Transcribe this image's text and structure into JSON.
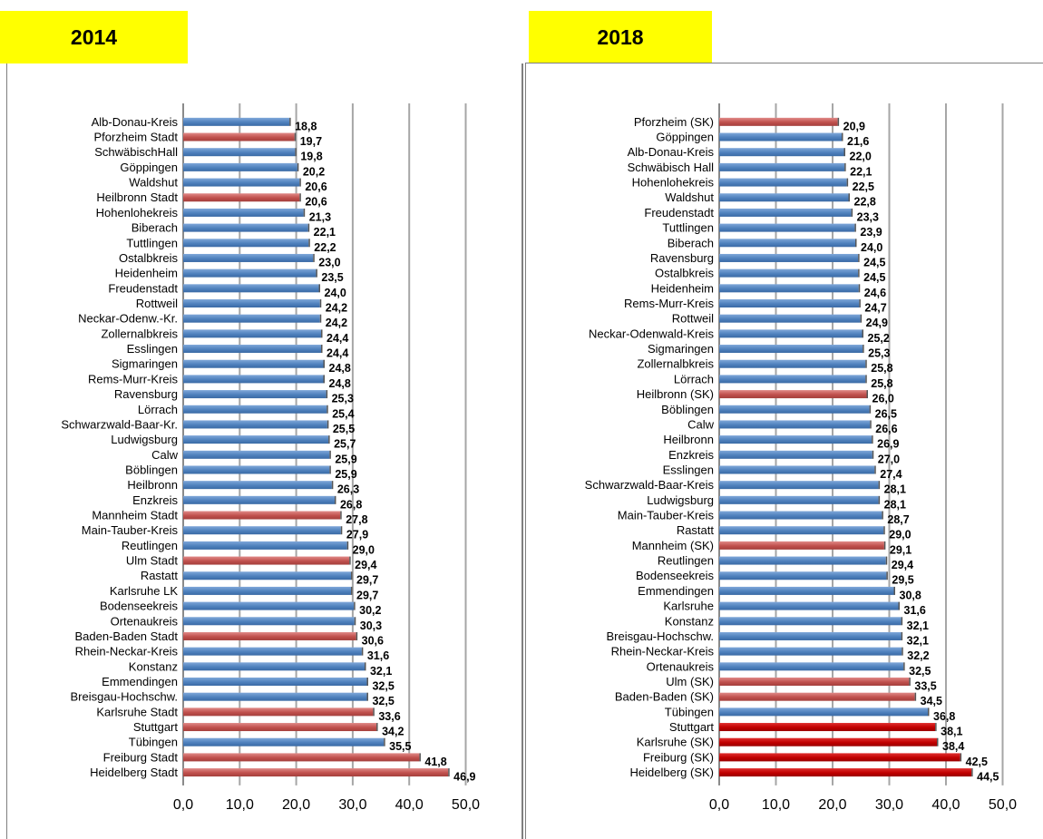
{
  "chart_data": [
    {
      "type": "bar",
      "orientation": "horizontal",
      "title": "2014",
      "xlim": [
        0,
        50
      ],
      "xticks": [
        "0,0",
        "10,0",
        "20,0",
        "30,0",
        "40,0",
        "50,0"
      ],
      "grid": true,
      "colors": {
        "default": "#4f81bd",
        "highlight": "#c0504d"
      },
      "categories": [
        "Alb-Donau-Kreis",
        "Pforzheim Stadt",
        "SchwäbischHall",
        "Göppingen",
        "Waldshut",
        "Heilbronn Stadt",
        "Hohenlohekreis",
        "Biberach",
        "Tuttlingen",
        "Ostalbkreis",
        "Heidenheim",
        "Freudenstadt",
        "Rottweil",
        "Neckar-Odenw.-Kr.",
        "Zollernalbkreis",
        "Esslingen",
        "Sigmaringen",
        "Rems-Murr-Kreis",
        "Ravensburg",
        "Lörrach",
        "Schwarzwald-Baar-Kr.",
        "Ludwigsburg",
        "Calw",
        "Böblingen",
        "Heilbronn",
        "Enzkreis",
        "Mannheim Stadt",
        "Main-Tauber-Kreis",
        "Reutlingen",
        "Ulm Stadt",
        "Rastatt",
        "Karlsruhe LK",
        "Bodenseekreis",
        "Ortenaukreis",
        "Baden-Baden Stadt",
        "Rhein-Neckar-Kreis",
        "Konstanz",
        "Emmendingen",
        "Breisgau-Hochschw.",
        "Karlsruhe Stadt",
        "Stuttgart",
        "Tübingen",
        "Freiburg Stadt",
        "Heidelberg Stadt"
      ],
      "values": [
        18.8,
        19.7,
        19.8,
        20.2,
        20.6,
        20.6,
        21.3,
        22.1,
        22.2,
        23.0,
        23.5,
        24.0,
        24.2,
        24.2,
        24.4,
        24.4,
        24.8,
        24.8,
        25.3,
        25.4,
        25.5,
        25.7,
        25.9,
        25.9,
        26.3,
        26.8,
        27.8,
        27.9,
        29.0,
        29.4,
        29.7,
        29.7,
        30.2,
        30.3,
        30.6,
        31.6,
        32.1,
        32.5,
        32.5,
        33.6,
        34.2,
        35.5,
        41.8,
        46.9
      ],
      "value_labels": [
        "18,8",
        "19,7",
        "19,8",
        "20,2",
        "20,6",
        "20,6",
        "21,3",
        "22,1",
        "22,2",
        "23,0",
        "23,5",
        "24,0",
        "24,2",
        "24,2",
        "24,4",
        "24,4",
        "24,8",
        "24,8",
        "25,3",
        "25,4",
        "25,5",
        "25,7",
        "25,9",
        "25,9",
        "26,3",
        "26,8",
        "27,8",
        "27,9",
        "29,0",
        "29,4",
        "29,7",
        "29,7",
        "30,2",
        "30,3",
        "30,6",
        "31,6",
        "32,1",
        "32,5",
        "32,5",
        "33,6",
        "34,2",
        "35,5",
        "41,8",
        "46,9"
      ],
      "highlight": [
        false,
        true,
        false,
        false,
        false,
        true,
        false,
        false,
        false,
        false,
        false,
        false,
        false,
        false,
        false,
        false,
        false,
        false,
        false,
        false,
        false,
        false,
        false,
        false,
        false,
        false,
        true,
        false,
        false,
        true,
        false,
        false,
        false,
        false,
        true,
        false,
        false,
        false,
        false,
        true,
        true,
        false,
        true,
        true
      ]
    },
    {
      "type": "bar",
      "orientation": "horizontal",
      "title": "2018",
      "xlim": [
        0,
        50
      ],
      "xticks": [
        "0,0",
        "10,0",
        "20,0",
        "30,0",
        "40,0",
        "50,0"
      ],
      "grid": true,
      "colors": {
        "default": "#4f81bd",
        "highlight": "#c0504d",
        "strong": "#c00000"
      },
      "categories": [
        "Pforzheim (SK)",
        "Göppingen",
        "Alb-Donau-Kreis",
        "Schwäbisch Hall",
        "Hohenlohekreis",
        "Waldshut",
        "Freudenstadt",
        "Tuttlingen",
        "Biberach",
        "Ravensburg",
        "Ostalbkreis",
        "Heidenheim",
        "Rems-Murr-Kreis",
        "Rottweil",
        "Neckar-Odenwald-Kreis",
        "Sigmaringen",
        "Zollernalbkreis",
        "Lörrach",
        "Heilbronn (SK)",
        "Böblingen",
        "Calw",
        "Heilbronn",
        "Enzkreis",
        "Esslingen",
        "Schwarzwald-Baar-Kreis",
        "Ludwigsburg",
        "Main-Tauber-Kreis",
        "Rastatt",
        "Mannheim (SK)",
        "Reutlingen",
        "Bodenseekreis",
        "Emmendingen",
        "Karlsruhe",
        "Konstanz",
        "Breisgau-Hochschw.",
        "Rhein-Neckar-Kreis",
        "Ortenaukreis",
        "Ulm (SK)",
        "Baden-Baden (SK)",
        "Tübingen",
        "Stuttgart",
        "Karlsruhe (SK)",
        "Freiburg (SK)",
        "Heidelberg (SK)"
      ],
      "values": [
        20.9,
        21.6,
        22.0,
        22.1,
        22.5,
        22.8,
        23.3,
        23.9,
        24.0,
        24.5,
        24.5,
        24.6,
        24.7,
        24.9,
        25.2,
        25.3,
        25.8,
        25.8,
        26.0,
        26.5,
        26.6,
        26.9,
        27.0,
        27.4,
        28.1,
        28.1,
        28.7,
        29.0,
        29.1,
        29.4,
        29.5,
        30.8,
        31.6,
        32.1,
        32.1,
        32.2,
        32.5,
        33.5,
        34.5,
        36.8,
        38.1,
        38.4,
        42.5,
        44.5
      ],
      "value_labels": [
        "20,9",
        "21,6",
        "22,0",
        "22,1",
        "22,5",
        "22,8",
        "23,3",
        "23,9",
        "24,0",
        "24,5",
        "24,5",
        "24,6",
        "24,7",
        "24,9",
        "25,2",
        "25,3",
        "25,8",
        "25,8",
        "26,0",
        "26,5",
        "26,6",
        "26,9",
        "27,0",
        "27,4",
        "28,1",
        "28,1",
        "28,7",
        "29,0",
        "29,1",
        "29,4",
        "29,5",
        "30,8",
        "31,6",
        "32,1",
        "32,1",
        "32,2",
        "32,5",
        "33,5",
        "34,5",
        "36,8",
        "38,1",
        "38,4",
        "42,5",
        "44,5"
      ],
      "highlight": [
        "highlight",
        "default",
        "default",
        "default",
        "default",
        "default",
        "default",
        "default",
        "default",
        "default",
        "default",
        "default",
        "default",
        "default",
        "default",
        "default",
        "default",
        "default",
        "highlight",
        "default",
        "default",
        "default",
        "default",
        "default",
        "default",
        "default",
        "default",
        "default",
        "highlight",
        "default",
        "default",
        "default",
        "default",
        "default",
        "default",
        "default",
        "default",
        "highlight",
        "highlight",
        "default",
        "strong",
        "strong",
        "strong",
        "strong"
      ]
    }
  ]
}
